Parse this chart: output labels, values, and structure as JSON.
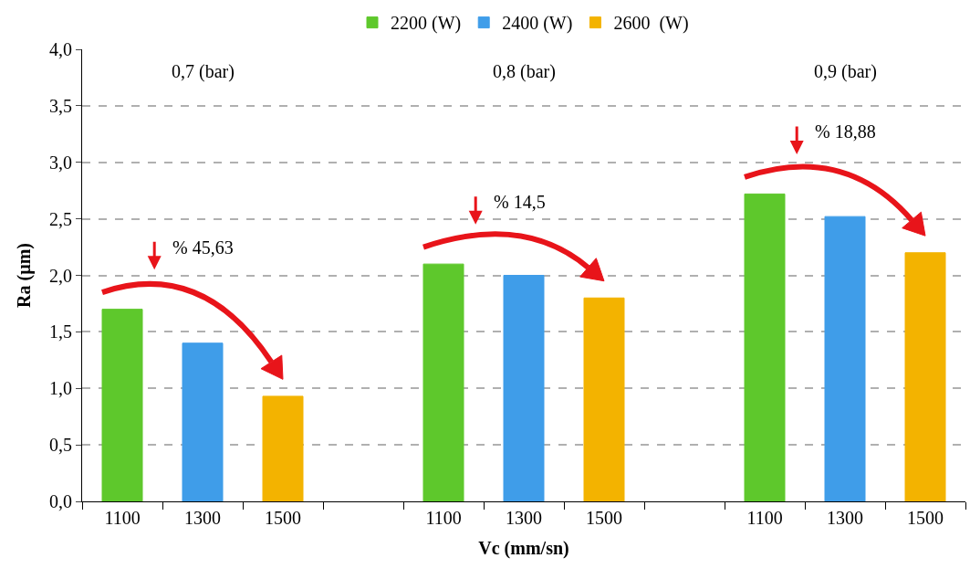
{
  "chart_data": {
    "type": "bar",
    "categories": [
      "1100",
      "1300",
      "1500",
      null,
      "1100",
      "1300",
      "1500",
      null,
      "1100",
      "1300",
      "1500"
    ],
    "series": [
      {
        "name": "2200 (W)",
        "color": "#5ec82c",
        "values": [
          1.7,
          null,
          null,
          null,
          2.1,
          null,
          null,
          null,
          2.72,
          null,
          null
        ]
      },
      {
        "name": "2400 (W)",
        "color": "#3f9de9",
        "values": [
          null,
          1.4,
          null,
          null,
          null,
          2.0,
          null,
          null,
          null,
          2.52,
          null
        ]
      },
      {
        "name": "2600  (W)",
        "color": "#f3b300",
        "values": [
          null,
          null,
          0.93,
          null,
          null,
          null,
          1.8,
          null,
          null,
          null,
          2.2
        ]
      }
    ],
    "xlabel": "Vc (mm/sn)",
    "ylabel": "Ra (µm)",
    "ylim": [
      0,
      4
    ],
    "yticks": [
      {
        "value": 0,
        "label": "0,0"
      },
      {
        "value": 0.5,
        "label": "0,5"
      },
      {
        "value": 1,
        "label": "1,0"
      },
      {
        "value": 1.5,
        "label": "1,5"
      },
      {
        "value": 2,
        "label": "2,0"
      },
      {
        "value": 2.5,
        "label": "2,5"
      },
      {
        "value": 3,
        "label": "3,0"
      },
      {
        "value": 3.5,
        "label": "3,5"
      },
      {
        "value": 4,
        "label": "4,0"
      }
    ],
    "annotations": [
      "0,7 (bar)",
      "0,8 (bar)",
      "0,9 (bar)",
      "% 45,63",
      "% 14,5",
      "% 18,88"
    ],
    "grid": "y",
    "legend": "top"
  }
}
